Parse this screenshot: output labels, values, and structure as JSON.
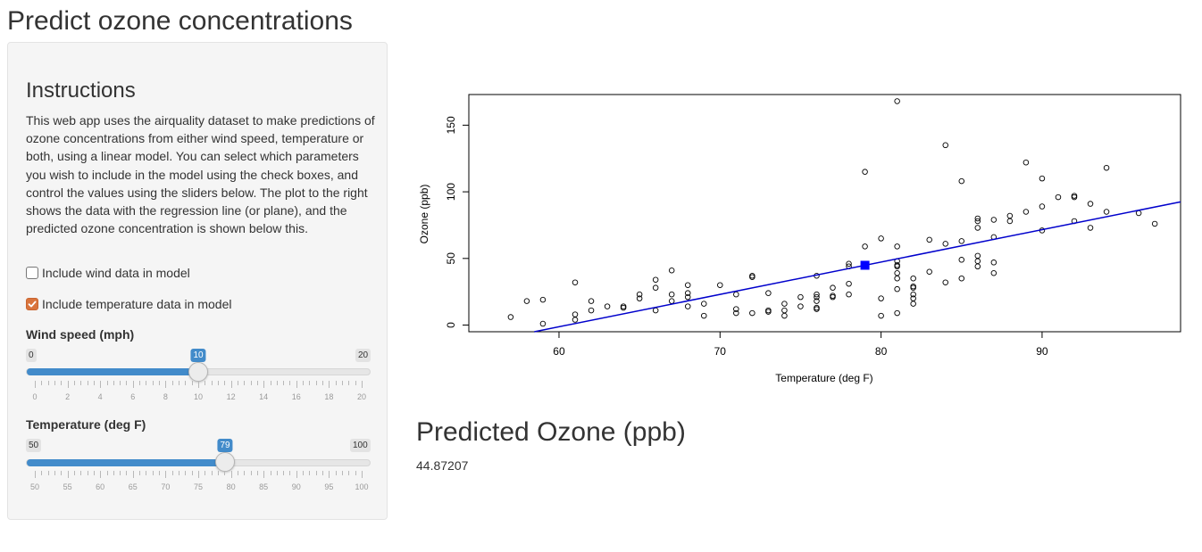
{
  "page": {
    "title": "Predict ozone concentrations"
  },
  "sidebar": {
    "instructions_title": "Instructions",
    "instructions_text": "This web app uses the airquality dataset to make predictions of ozone concentrations from either wind speed, temperature or both, using a linear model. You can select which parameters you wish to include in the model using the check boxes, and control the values using the sliders below. The plot to the right shows the data with the regression line (or plane), and the predicted ozone concentration is shown below this.",
    "checkboxes": [
      {
        "label": "Include wind data in model",
        "checked": false
      },
      {
        "label": "Include temperature data in model",
        "checked": true
      }
    ],
    "wind_slider": {
      "label": "Wind speed (mph)",
      "min": "0",
      "max": "20",
      "value": "10",
      "ticks": [
        "0",
        "2",
        "4",
        "6",
        "8",
        "10",
        "12",
        "14",
        "16",
        "18",
        "20"
      ]
    },
    "temp_slider": {
      "label": "Temperature (deg F)",
      "min": "50",
      "max": "100",
      "value": "79",
      "ticks": [
        "50",
        "55",
        "60",
        "65",
        "70",
        "75",
        "80",
        "85",
        "90",
        "95",
        "100"
      ]
    }
  },
  "colors": {
    "accent": "#428bca",
    "checkbox": "#d9743d",
    "regression_line": "#0000cc",
    "predicted_point": "#0000ff"
  },
  "chart_data": {
    "type": "scatter",
    "title": "",
    "xlabel": "Temperature (deg F)",
    "ylabel": "Ozone (ppb)",
    "xlim": [
      54.4,
      98.6
    ],
    "ylim": [
      -5,
      173
    ],
    "xticks": [
      60,
      70,
      80,
      90
    ],
    "yticks": [
      0,
      50,
      100,
      150
    ],
    "points": [
      [
        57,
        6
      ],
      [
        58,
        18
      ],
      [
        59,
        19
      ],
      [
        59,
        1
      ],
      [
        61,
        32
      ],
      [
        61,
        8
      ],
      [
        61,
        4
      ],
      [
        62,
        18
      ],
      [
        62,
        11
      ],
      [
        63,
        14
      ],
      [
        64,
        13
      ],
      [
        64,
        14
      ],
      [
        65,
        23
      ],
      [
        65,
        20
      ],
      [
        66,
        34
      ],
      [
        66,
        28
      ],
      [
        66,
        11
      ],
      [
        67,
        41
      ],
      [
        67,
        23
      ],
      [
        67,
        18
      ],
      [
        68,
        30
      ],
      [
        68,
        24
      ],
      [
        68,
        21
      ],
      [
        68,
        14
      ],
      [
        69,
        16
      ],
      [
        69,
        7
      ],
      [
        70,
        30
      ],
      [
        71,
        23
      ],
      [
        71,
        12
      ],
      [
        71,
        9
      ],
      [
        72,
        37
      ],
      [
        72,
        36
      ],
      [
        72,
        9
      ],
      [
        73,
        24
      ],
      [
        73,
        11
      ],
      [
        73,
        10
      ],
      [
        74,
        16
      ],
      [
        74,
        11
      ],
      [
        74,
        7
      ],
      [
        75,
        21
      ],
      [
        75,
        14
      ],
      [
        76,
        37
      ],
      [
        76,
        23
      ],
      [
        76,
        21
      ],
      [
        76,
        18
      ],
      [
        76,
        13
      ],
      [
        76,
        12
      ],
      [
        77,
        28
      ],
      [
        77,
        22
      ],
      [
        77,
        21
      ],
      [
        78,
        46
      ],
      [
        78,
        44
      ],
      [
        78,
        31
      ],
      [
        78,
        23
      ],
      [
        79,
        115
      ],
      [
        79,
        59
      ],
      [
        80,
        65
      ],
      [
        80,
        20
      ],
      [
        80,
        7
      ],
      [
        81,
        168
      ],
      [
        81,
        59
      ],
      [
        81,
        48
      ],
      [
        81,
        45
      ],
      [
        81,
        44
      ],
      [
        81,
        39
      ],
      [
        81,
        35
      ],
      [
        81,
        27
      ],
      [
        81,
        9
      ],
      [
        82,
        35
      ],
      [
        82,
        29
      ],
      [
        82,
        23
      ],
      [
        82,
        20
      ],
      [
        82,
        16
      ],
      [
        82,
        28
      ],
      [
        83,
        64
      ],
      [
        83,
        40
      ],
      [
        84,
        135
      ],
      [
        84,
        61
      ],
      [
        84,
        32
      ],
      [
        85,
        108
      ],
      [
        85,
        63
      ],
      [
        85,
        49
      ],
      [
        85,
        35
      ],
      [
        86,
        80
      ],
      [
        86,
        78
      ],
      [
        86,
        73
      ],
      [
        86,
        52
      ],
      [
        86,
        48
      ],
      [
        86,
        44
      ],
      [
        87,
        79
      ],
      [
        87,
        66
      ],
      [
        87,
        47
      ],
      [
        87,
        39
      ],
      [
        88,
        82
      ],
      [
        88,
        78
      ],
      [
        89,
        122
      ],
      [
        89,
        85
      ],
      [
        90,
        110
      ],
      [
        90,
        89
      ],
      [
        90,
        71
      ],
      [
        91,
        96
      ],
      [
        92,
        97
      ],
      [
        92,
        96
      ],
      [
        92,
        78
      ],
      [
        93,
        91
      ],
      [
        93,
        73
      ],
      [
        94,
        118
      ],
      [
        94,
        85
      ],
      [
        96,
        84
      ],
      [
        97,
        76
      ]
    ],
    "regression": {
      "intercept": -146.9955,
      "slope": 2.4287
    },
    "predicted_point": {
      "x": 79,
      "y": 44.87207
    }
  },
  "prediction": {
    "title": "Predicted Ozone (ppb)",
    "value": "44.87207"
  }
}
